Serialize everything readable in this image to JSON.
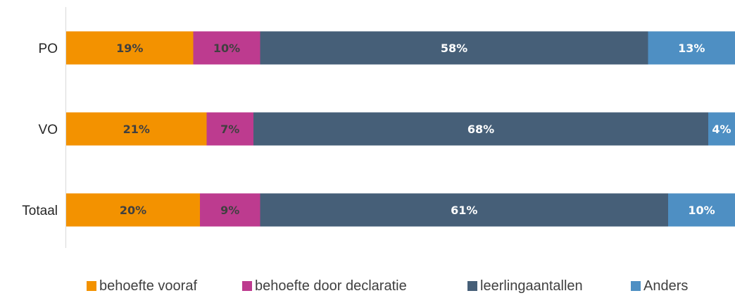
{
  "chart_data": {
    "type": "bar",
    "orientation": "horizontal",
    "stacked": true,
    "percent_stacked": true,
    "categories": [
      "PO",
      "VO",
      "Totaal"
    ],
    "series": [
      {
        "name": "behoefte vooraf",
        "values": [
          19,
          21,
          20
        ],
        "labels": [
          "19%",
          "21%",
          "20%"
        ],
        "color": "#F39200",
        "label_color": "#404040"
      },
      {
        "name": "behoefte door declaratie",
        "values": [
          10,
          7,
          9
        ],
        "labels": [
          "10%",
          "7%",
          "9%"
        ],
        "color": "#BD3B8F",
        "label_color": "#404040"
      },
      {
        "name": "leerlingaantallen",
        "values": [
          58,
          68,
          61
        ],
        "labels": [
          "58%",
          "68%",
          "61%"
        ],
        "color": "#465F78",
        "label_color": "#ffffff"
      },
      {
        "name": "Anders",
        "values": [
          13,
          4,
          10
        ],
        "labels": [
          "13%",
          "4%",
          "10%"
        ],
        "color": "#4E8FC3",
        "label_color": "#ffffff"
      }
    ],
    "xlim": [
      0,
      100
    ],
    "grid": false,
    "legend_position": "bottom",
    "title": "",
    "xlabel": "",
    "ylabel": ""
  }
}
